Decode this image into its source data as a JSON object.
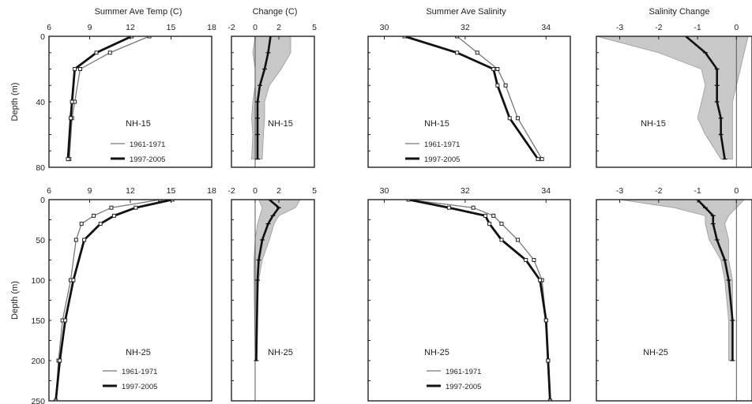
{
  "colors": {
    "line_1961": "#777777",
    "line_1997": "#111111",
    "band": "#c8c8c8",
    "frame": "#222222"
  },
  "legend": {
    "series_1961": "1961-1971",
    "series_1997": "1997-2005"
  },
  "chart_data": [
    {
      "id": "temp-nh15",
      "type": "line",
      "title": "Summer Ave Temp (C)",
      "ylabel": "Depth (m)",
      "station": "NH-15",
      "xlim": [
        6,
        18
      ],
      "xticks": [
        "6",
        "9",
        "12",
        "15",
        "18"
      ],
      "ylim": [
        0,
        80
      ],
      "yticks": [
        "0",
        "40",
        "80"
      ],
      "legend": true,
      "series": [
        {
          "name": "1961-1971",
          "x": [
            13.4,
            10.5,
            8.3,
            7.9,
            7.7,
            7.5
          ],
          "y": [
            0,
            10,
            20,
            40,
            50,
            75
          ]
        },
        {
          "name": "1997-2005",
          "x": [
            12.1,
            9.5,
            7.9,
            7.7,
            7.6,
            7.4
          ],
          "y": [
            0,
            10,
            20,
            40,
            50,
            75
          ]
        }
      ]
    },
    {
      "id": "temp-change-nh15",
      "type": "area",
      "title": "Change (C)",
      "station": "NH-15",
      "xlim": [
        -2,
        5
      ],
      "xticks": [
        "-2",
        "0",
        "2",
        "5"
      ],
      "ylim": [
        0,
        80
      ],
      "band": {
        "y": [
          0,
          10,
          20,
          30,
          40,
          50,
          60,
          75
        ],
        "lower": [
          0.0,
          -0.2,
          0.0,
          0.0,
          -0.2,
          -0.3,
          -0.2,
          -0.3
        ],
        "upper": [
          3.0,
          3.0,
          2.2,
          1.2,
          0.8,
          0.8,
          0.7,
          0.6
        ]
      },
      "change": {
        "x": [
          1.3,
          1.1,
          0.8,
          0.4,
          0.2,
          0.2,
          0.2,
          0.2
        ],
        "y": [
          0,
          10,
          20,
          30,
          40,
          50,
          60,
          75
        ]
      }
    },
    {
      "id": "salinity-nh15",
      "type": "line",
      "title": "Summer Ave Salinity",
      "station": "NH-15",
      "xlim": [
        29.6,
        34.6
      ],
      "xticks": [
        "30",
        "32",
        "34"
      ],
      "ylim": [
        0,
        80
      ],
      "legend": true,
      "series": [
        {
          "name": "1961-1971",
          "x": [
            31.8,
            32.3,
            32.8,
            33.0,
            33.3,
            33.9
          ],
          "y": [
            0,
            10,
            20,
            30,
            50,
            75
          ]
        },
        {
          "name": "1997-2005",
          "x": [
            30.5,
            31.8,
            32.7,
            32.8,
            33.1,
            33.8
          ],
          "y": [
            0,
            10,
            20,
            30,
            50,
            75
          ]
        }
      ]
    },
    {
      "id": "salinity-change-nh15",
      "type": "area",
      "title": "Salinity Change",
      "station": "NH-15",
      "xlim": [
        -3.6,
        0.4
      ],
      "xticks": [
        "-3",
        "-2",
        "-1",
        "0"
      ],
      "ylim": [
        0,
        80
      ],
      "band": {
        "y": [
          0,
          10,
          20,
          30,
          40,
          50,
          60,
          75
        ],
        "lower": [
          -3.6,
          -2.0,
          -0.9,
          -0.8,
          -0.9,
          -1.0,
          -0.8,
          -0.4
        ],
        "upper": [
          0.3,
          0.2,
          0.1,
          0.0,
          -0.1,
          -0.1,
          -0.1,
          -0.1
        ]
      },
      "change": {
        "x": [
          -1.3,
          -0.8,
          -0.5,
          -0.5,
          -0.5,
          -0.4,
          -0.4,
          -0.3
        ],
        "y": [
          0,
          10,
          20,
          30,
          40,
          50,
          60,
          75
        ]
      }
    },
    {
      "id": "temp-nh25",
      "type": "line",
      "station": "NH-25",
      "ylabel": "Depth (m)",
      "xlim": [
        6,
        18
      ],
      "xticks": [
        "6",
        "9",
        "12",
        "15",
        "18"
      ],
      "ylim": [
        0,
        250
      ],
      "yticks": [
        "0",
        "50",
        "100",
        "150",
        "200",
        "250"
      ],
      "legend": true,
      "series": [
        {
          "name": "1961-1971",
          "x": [
            14.2,
            10.6,
            9.3,
            8.4,
            8.0,
            7.6,
            7.0,
            6.7,
            6.5
          ],
          "y": [
            0,
            10,
            20,
            30,
            50,
            100,
            150,
            200,
            250
          ]
        },
        {
          "name": "1997-2005",
          "x": [
            15.1,
            12.4,
            10.8,
            9.8,
            8.6,
            7.8,
            7.2,
            6.8,
            6.5
          ],
          "y": [
            0,
            10,
            20,
            30,
            50,
            100,
            150,
            200,
            250
          ]
        }
      ]
    },
    {
      "id": "temp-change-nh25",
      "type": "area",
      "station": "NH-25",
      "xlim": [
        -2,
        5
      ],
      "xticks": [
        "-2",
        "0",
        "2",
        "5"
      ],
      "ylim": [
        0,
        250
      ],
      "band": {
        "y": [
          0,
          10,
          20,
          30,
          50,
          75,
          100,
          200
        ],
        "lower": [
          0.3,
          0.6,
          0.4,
          0.2,
          0.0,
          -0.1,
          -0.1,
          0.0
        ],
        "upper": [
          3.8,
          3.4,
          2.0,
          1.6,
          1.2,
          0.6,
          0.3,
          0.1
        ]
      },
      "change": {
        "x": [
          1.2,
          2.0,
          1.5,
          1.1,
          0.6,
          0.3,
          0.2,
          0.1
        ],
        "y": [
          0,
          10,
          20,
          30,
          50,
          75,
          100,
          200
        ]
      }
    },
    {
      "id": "salinity-nh25",
      "type": "line",
      "station": "NH-25",
      "xlim": [
        29.6,
        34.6
      ],
      "xticks": [
        "30",
        "32",
        "34"
      ],
      "ylim": [
        0,
        250
      ],
      "legend": true,
      "series": [
        {
          "name": "1961-1971",
          "x": [
            30.6,
            32.2,
            32.7,
            32.9,
            33.3,
            33.7,
            33.9,
            34.0,
            34.05,
            34.1
          ],
          "y": [
            0,
            10,
            20,
            30,
            50,
            75,
            100,
            150,
            200,
            250
          ]
        },
        {
          "name": "1997-2005",
          "x": [
            30.6,
            31.6,
            32.5,
            32.6,
            32.9,
            33.5,
            33.85,
            34.0,
            34.05,
            34.1
          ],
          "y": [
            0,
            10,
            20,
            30,
            50,
            75,
            100,
            150,
            200,
            250
          ]
        }
      ]
    },
    {
      "id": "salinity-change-nh25",
      "type": "area",
      "station": "NH-25",
      "xlim": [
        -3.6,
        0.4
      ],
      "xticks": [
        "-3",
        "-2",
        "-1",
        "0"
      ],
      "ylim": [
        0,
        250
      ],
      "band": {
        "y": [
          0,
          10,
          20,
          30,
          50,
          75,
          100,
          150,
          200
        ],
        "lower": [
          -3.0,
          -1.6,
          -0.8,
          -0.8,
          -0.7,
          -0.4,
          -0.3,
          -0.2,
          -0.2
        ],
        "upper": [
          0.2,
          0.0,
          -0.2,
          -0.3,
          -0.2,
          -0.2,
          -0.1,
          -0.1,
          -0.1
        ]
      },
      "change": {
        "x": [
          -1.0,
          -0.8,
          -0.6,
          -0.6,
          -0.5,
          -0.3,
          -0.2,
          -0.1,
          -0.1
        ],
        "y": [
          0,
          10,
          20,
          30,
          50,
          75,
          100,
          150,
          200
        ]
      }
    }
  ]
}
